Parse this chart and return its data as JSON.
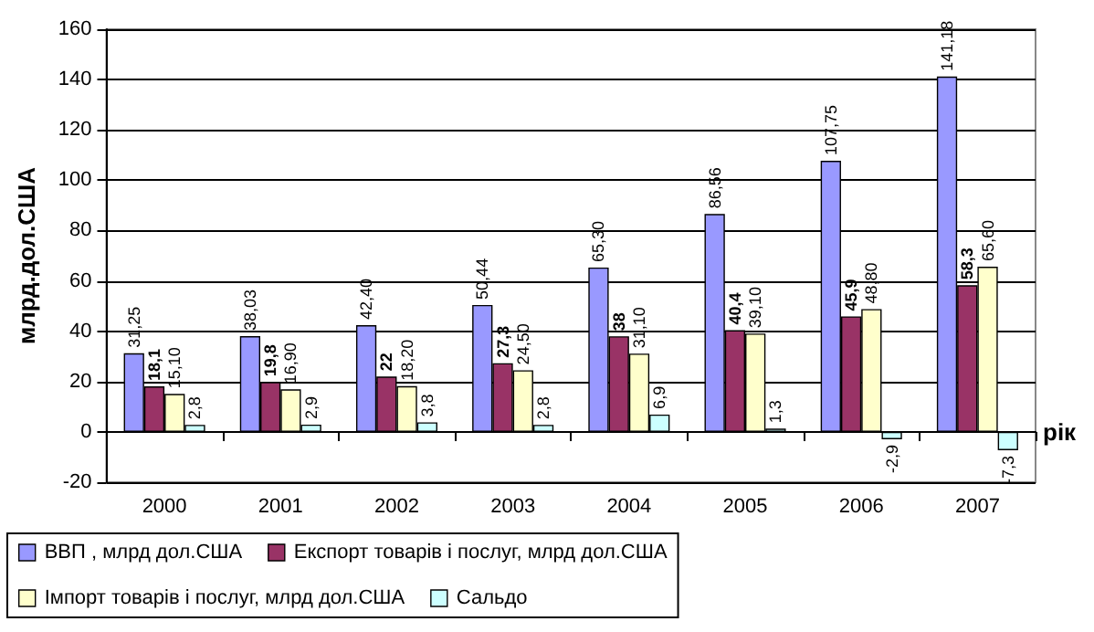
{
  "chart_data": {
    "type": "bar",
    "xlabel": "рік",
    "ylabel": "млрд.дол.США",
    "categories": [
      "2000",
      "2001",
      "2002",
      "2003",
      "2004",
      "2005",
      "2006",
      "2007"
    ],
    "series": [
      {
        "name": "ВВП , млрд дол.США",
        "color": "#9999ff",
        "values": [
          31.25,
          38.03,
          42.4,
          50.44,
          65.3,
          86.56,
          107.75,
          141.18
        ],
        "value_labels": [
          "31,25",
          "38,03",
          "42,40",
          "50,44",
          "65,30",
          "86,56",
          "107,75",
          "141,18"
        ]
      },
      {
        "name": "Експорт товарів і послуг, млрд дол.США",
        "color": "#993366",
        "values": [
          18.1,
          19.8,
          22,
          27.3,
          38,
          40.4,
          45.9,
          58.3
        ],
        "value_labels": [
          "18,1",
          "19,8",
          "22",
          "27,3",
          "38",
          "40,4",
          "45,9",
          "58,3"
        ]
      },
      {
        "name": "Імпорт товарів і послуг, млрд дол.США",
        "color": "#ffffcc",
        "values": [
          15.1,
          16.9,
          18.2,
          24.5,
          31.1,
          39.1,
          48.8,
          65.6
        ],
        "value_labels": [
          "15,10",
          "16,90",
          "18,20",
          "24,50",
          "31,10",
          "39,10",
          "48,80",
          "65,60"
        ]
      },
      {
        "name": "Сальдо",
        "color": "#ccffff",
        "values": [
          2.8,
          2.9,
          3.8,
          2.8,
          6.9,
          1.3,
          -2.9,
          -7.3
        ],
        "value_labels": [
          "2,8",
          "2,9",
          "3,8",
          "2,8",
          "6,9",
          "1,3",
          "-2,9",
          "-7,3"
        ]
      }
    ],
    "ylim": [
      -20,
      160
    ],
    "yticks": [
      -20,
      0,
      20,
      40,
      60,
      80,
      100,
      120,
      140,
      160
    ],
    "grid": "y",
    "legend": "bottom"
  }
}
